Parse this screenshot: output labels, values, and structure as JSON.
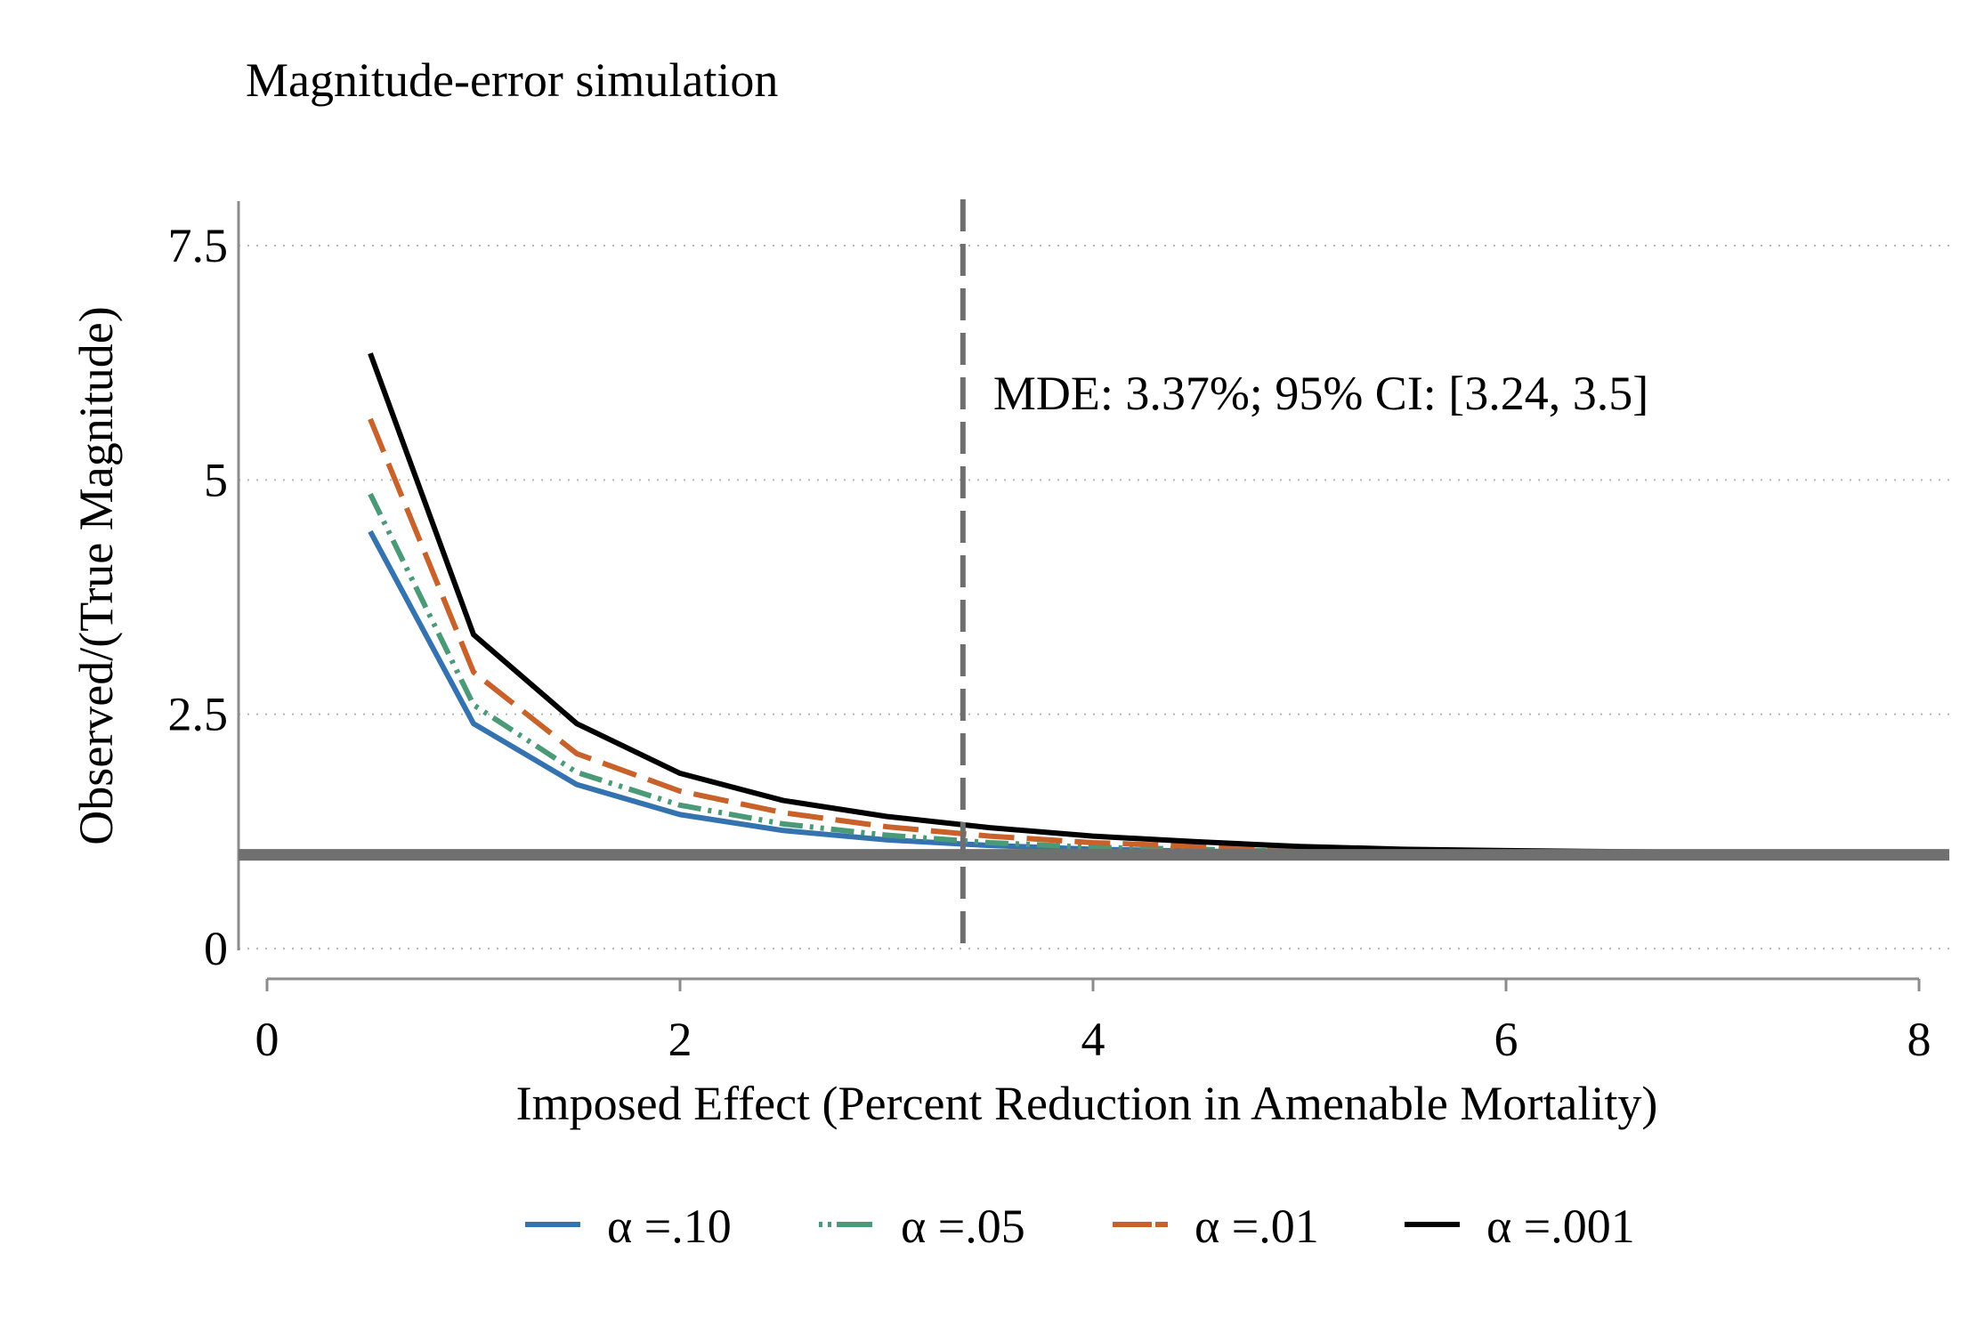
{
  "chart_data": {
    "type": "line",
    "title": "Magnitude-error simulation",
    "xlabel": "Imposed Effect (Percent Reduction in Amenable Mortality)",
    "ylabel": "Observed/(True Magnitude)",
    "xlim": [
      0,
      8
    ],
    "ylim": [
      0,
      7.5
    ],
    "x_ticks": [
      0,
      2,
      4,
      6,
      8
    ],
    "x_tick_labels": [
      "0",
      "2",
      "4",
      "6",
      "8"
    ],
    "y_ticks": [
      0,
      2.5,
      5,
      7.5
    ],
    "y_tick_labels": [
      "0",
      "2.5",
      "5",
      "7.5"
    ],
    "grid": "horizontal dotted",
    "legend_position": "bottom",
    "reference_line": {
      "y": 1
    },
    "mde_line": {
      "x": 3.37,
      "label": "MDE: 3.37%; 95% CI: [3.24, 3.5]"
    },
    "x": [
      0.5,
      1,
      1.5,
      2,
      2.5,
      3,
      3.5,
      4,
      4.5,
      5,
      5.5,
      6,
      6.5,
      7,
      7.5,
      8
    ],
    "series": [
      {
        "name": "α =.10",
        "color": "#3572b0",
        "dash": "solid",
        "values": [
          4.45,
          2.4,
          1.75,
          1.43,
          1.26,
          1.16,
          1.1,
          1.06,
          1.04,
          1.03,
          1.02,
          1.015,
          1.01,
          1.01,
          1.005,
          1.005
        ]
      },
      {
        "name": "α =.05",
        "color": "#4a9a78",
        "dash": "dashdot",
        "values": [
          4.85,
          2.6,
          1.88,
          1.53,
          1.33,
          1.21,
          1.13,
          1.08,
          1.06,
          1.04,
          1.03,
          1.02,
          1.015,
          1.01,
          1.01,
          1.005
        ]
      },
      {
        "name": "α =.01",
        "color": "#c8612a",
        "dash": "longdash",
        "values": [
          5.65,
          2.95,
          2.08,
          1.68,
          1.45,
          1.3,
          1.2,
          1.13,
          1.09,
          1.06,
          1.04,
          1.03,
          1.02,
          1.015,
          1.01,
          1.01
        ]
      },
      {
        "name": "α =.001",
        "color": "#000000",
        "dash": "solid",
        "values": [
          6.35,
          3.35,
          2.4,
          1.87,
          1.58,
          1.41,
          1.29,
          1.2,
          1.14,
          1.09,
          1.06,
          1.045,
          1.035,
          1.025,
          1.02,
          1.015
        ]
      }
    ]
  }
}
